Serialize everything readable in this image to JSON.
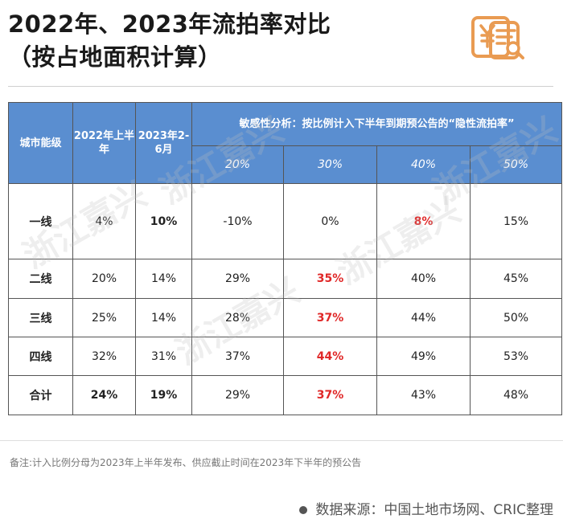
{
  "title": {
    "line1": "2022年、2023年流拍率对比",
    "line2": "（按占地面积计算）"
  },
  "logo": {
    "icon": "yuan-document-search-icon",
    "color": "#e99b52"
  },
  "table": {
    "header": {
      "city_level": "城市能级",
      "col_2022": "2022年上半年",
      "col_2023": "2023年2-6月",
      "sensitivity": "敏感性分析：按比例计入下半年到期预公告的“隐性流拍率”",
      "pcts": [
        "20%",
        "30%",
        "40%",
        "50%"
      ]
    },
    "rows": [
      {
        "city": "一线",
        "v2022": "4%",
        "v2023": "10%",
        "s": [
          "-10%",
          "0%",
          "8%",
          "15%"
        ]
      },
      {
        "city": "二线",
        "v2022": "20%",
        "v2023": "14%",
        "s": [
          "29%",
          "35%",
          "40%",
          "45%"
        ]
      },
      {
        "city": "三线",
        "v2022": "25%",
        "v2023": "14%",
        "s": [
          "28%",
          "37%",
          "44%",
          "50%"
        ]
      },
      {
        "city": "四线",
        "v2022": "32%",
        "v2023": "31%",
        "s": [
          "37%",
          "44%",
          "49%",
          "53%"
        ]
      },
      {
        "city": "合计",
        "v2022": "24%",
        "v2023": "19%",
        "s": [
          "29%",
          "37%",
          "43%",
          "48%"
        ]
      }
    ],
    "header_color": "#5a8ed0",
    "highlight_color": "#e02828"
  },
  "watermark": {
    "text": "浙江嘉兴"
  },
  "note": "备注:计入比例分母为2023年上半年发布、供应截止时间在2023年下半年的预公告",
  "source": "数据来源：中国土地市场网、CRIC整理"
}
